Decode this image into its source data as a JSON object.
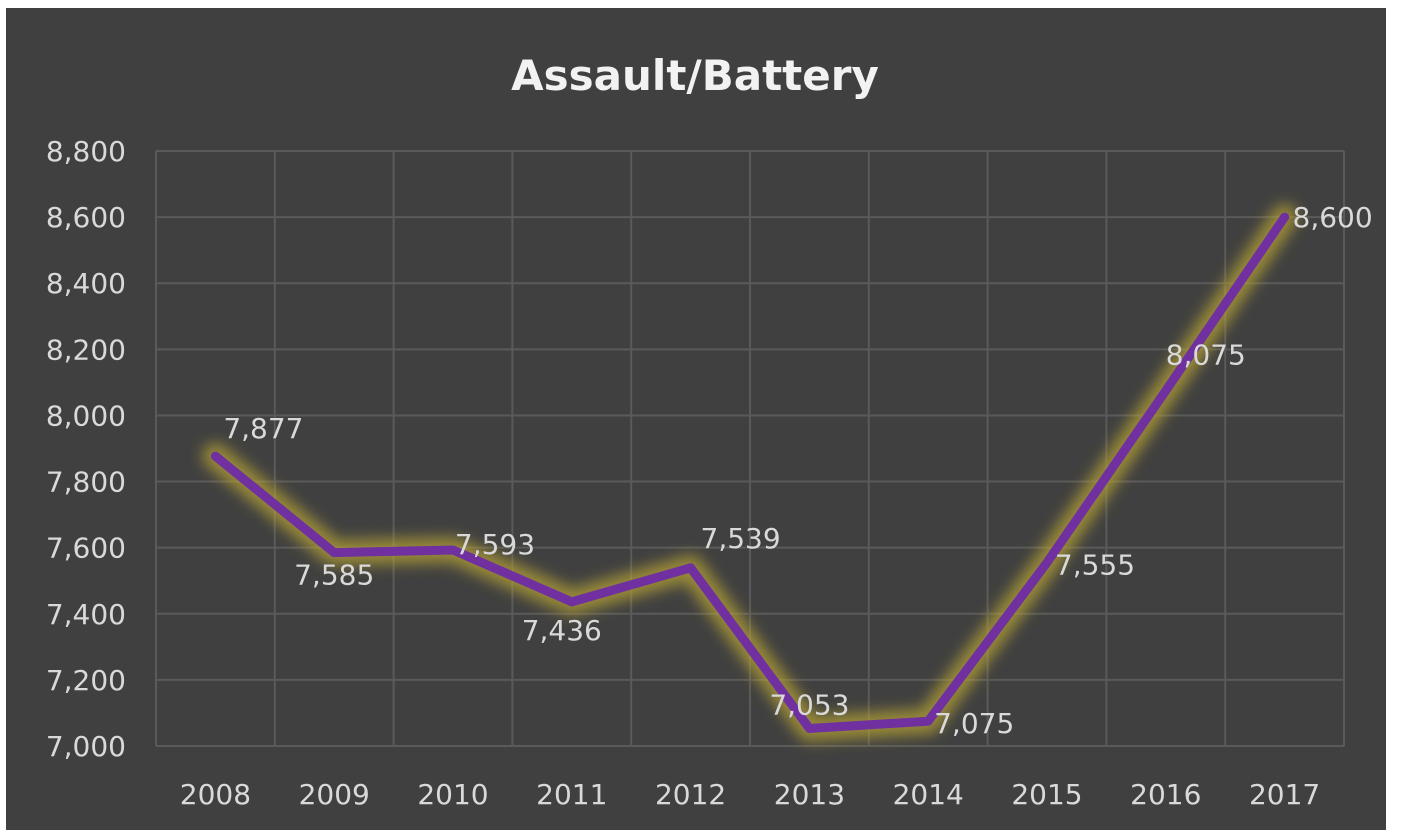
{
  "chart_data": {
    "type": "line",
    "title": "Assault/Battery",
    "xlabel": "",
    "ylabel": "",
    "categories": [
      "2008",
      "2009",
      "2010",
      "2011",
      "2012",
      "2013",
      "2014",
      "2015",
      "2016",
      "2017"
    ],
    "series": [
      {
        "values": [
          7877,
          7585,
          7593,
          7436,
          7539,
          7053,
          7075,
          7555,
          8075,
          8600
        ],
        "labels": [
          "7,877",
          "7,585",
          "7,593",
          "7,436",
          "7,539",
          "7,053",
          "7,075",
          "7,555",
          "8,075",
          "8,600"
        ],
        "color": "#7030a0",
        "glow_color": "#b5a236"
      }
    ],
    "ylim": [
      7000,
      8800
    ],
    "yticks": [
      7000,
      7200,
      7400,
      7600,
      7800,
      8000,
      8200,
      8400,
      8600,
      8800
    ],
    "ytick_labels": [
      "7,000",
      "7,200",
      "7,400",
      "7,600",
      "7,800",
      "8,000",
      "8,200",
      "8,400",
      "8,600",
      "8,800"
    ],
    "grid": true,
    "legend": "none",
    "background": "#404040"
  }
}
